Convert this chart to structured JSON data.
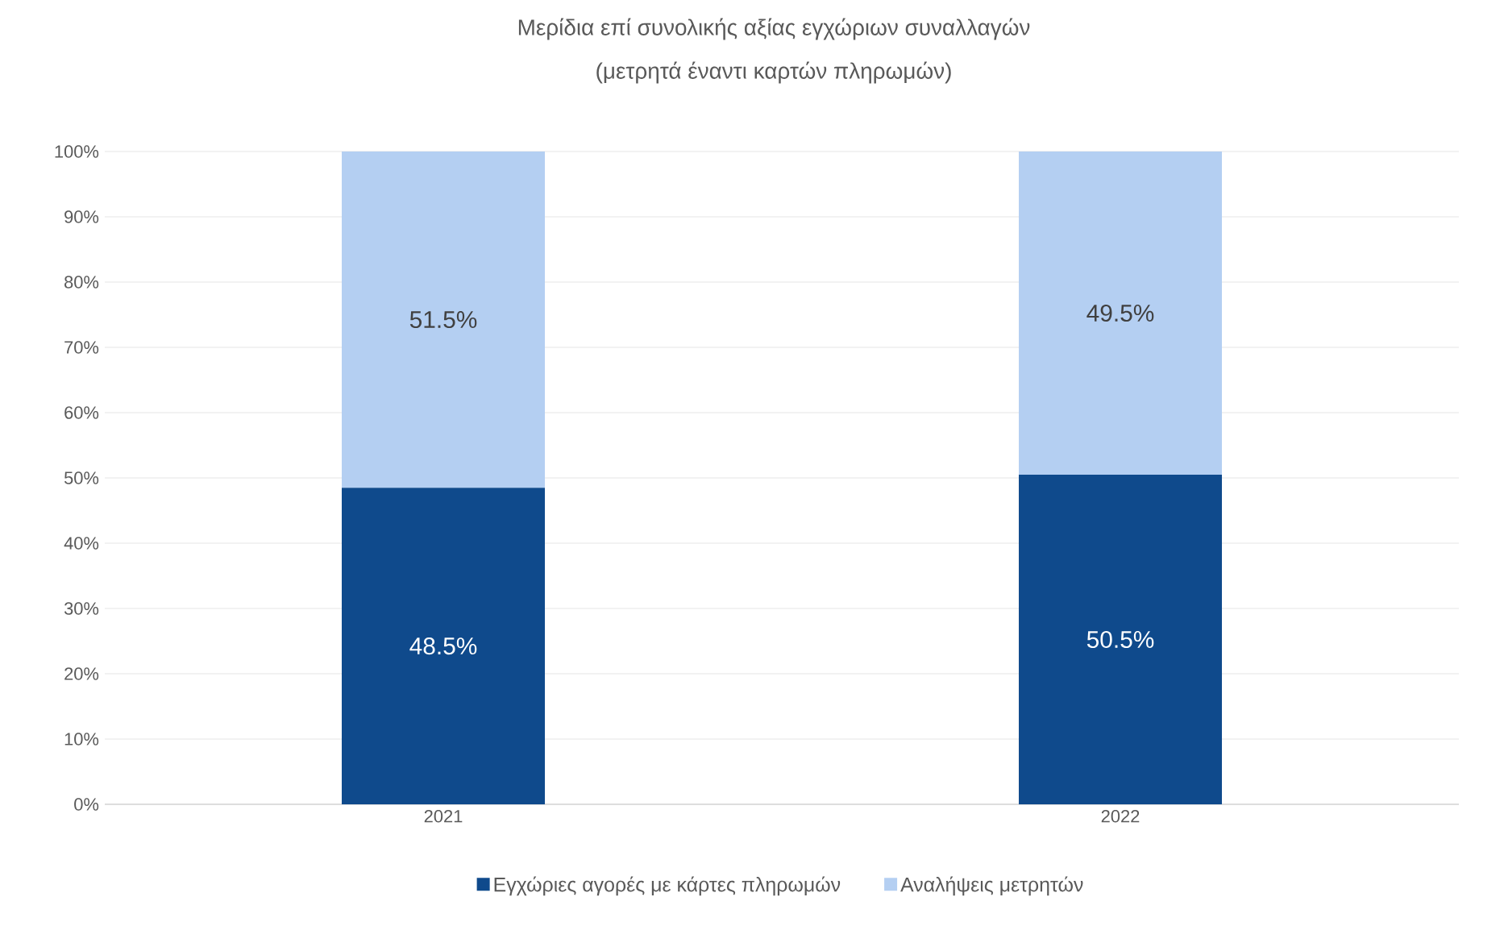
{
  "chart_data": {
    "type": "bar",
    "stacked": true,
    "title": "Μερίδια επί συνολικής αξίας εγχώριων συναλλαγών",
    "subtitle": "(μετρητά έναντι καρτών πληρωμών)",
    "categories": [
      "2021",
      "2022"
    ],
    "series": [
      {
        "name": "Εγχώριες αγορές με κάρτες πληρωμών",
        "color": "#0f4a8c",
        "values": [
          48.5,
          50.5
        ],
        "value_labels": [
          "48.5%",
          "50.5%"
        ]
      },
      {
        "name": "Αναλήψεις μετρητών",
        "color": "#b4cff2",
        "values": [
          51.5,
          49.5
        ],
        "value_labels": [
          "51.5%",
          "49.5%"
        ]
      }
    ],
    "ylim": [
      0,
      100
    ],
    "yticks": [
      {
        "value": 0,
        "label": "0%"
      },
      {
        "value": 10,
        "label": "10%"
      },
      {
        "value": 20,
        "label": "20%"
      },
      {
        "value": 30,
        "label": "30%"
      },
      {
        "value": 40,
        "label": "40%"
      },
      {
        "value": 50,
        "label": "50%"
      },
      {
        "value": 60,
        "label": "60%"
      },
      {
        "value": 70,
        "label": "70%"
      },
      {
        "value": 80,
        "label": "80%"
      },
      {
        "value": 90,
        "label": "90%"
      },
      {
        "value": 100,
        "label": "100%"
      }
    ],
    "grid": "y",
    "legend": "bottom"
  }
}
